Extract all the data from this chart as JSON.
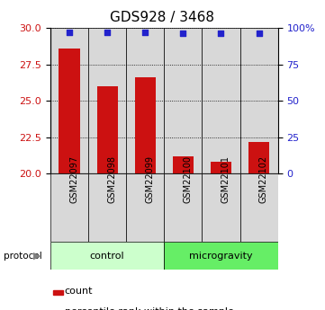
{
  "title": "GDS928 / 3468",
  "samples": [
    "GSM22097",
    "GSM22098",
    "GSM22099",
    "GSM22100",
    "GSM22101",
    "GSM22102"
  ],
  "counts": [
    28.6,
    26.0,
    26.6,
    21.2,
    20.8,
    22.2
  ],
  "percentiles": [
    96.8,
    96.8,
    96.7,
    96.5,
    96.4,
    96.3
  ],
  "groups": [
    {
      "label": "control",
      "samples_idx": [
        0,
        1,
        2
      ],
      "color": "#ccffcc"
    },
    {
      "label": "microgravity",
      "samples_idx": [
        3,
        4,
        5
      ],
      "color": "#66ee66"
    }
  ],
  "ylim": [
    20,
    30
  ],
  "yticks_left": [
    20,
    22.5,
    25,
    27.5,
    30
  ],
  "yticks_right": [
    0,
    25,
    50,
    75,
    100
  ],
  "bar_color": "#cc1111",
  "dot_color": "#2222cc",
  "col_bg": "#d8d8d8",
  "title_fontsize": 11,
  "tick_fontsize": 8,
  "sample_fontsize": 7,
  "legend_fontsize": 8
}
